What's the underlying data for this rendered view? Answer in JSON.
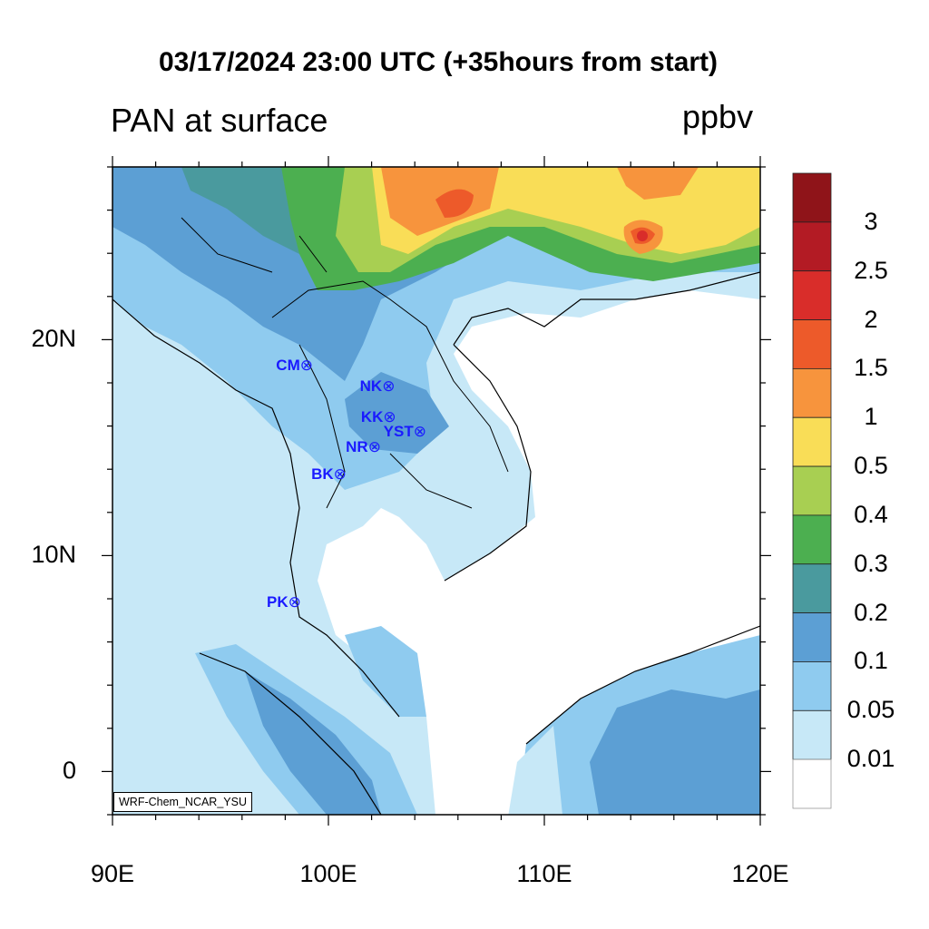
{
  "title": "03/17/2024 23:00 UTC (+35hours from start)",
  "subtitle": "PAN at surface",
  "units": "ppbv",
  "credit": "WRF-Chem_NCAR_YSU",
  "axes": {
    "lon_labels": [
      "90E",
      "100E",
      "110E",
      "120E"
    ],
    "lon_values": [
      90,
      100,
      110,
      120
    ],
    "lat_labels": [
      "20N",
      "10N",
      "0"
    ],
    "lat_values": [
      20,
      10,
      0
    ],
    "lon_range": [
      90,
      120
    ],
    "lat_range": [
      -2,
      28
    ]
  },
  "colorbar": {
    "labels": [
      "3",
      "2.5",
      "2",
      "1.5",
      "1",
      "0.5",
      "0.4",
      "0.3",
      "0.2",
      "0.1",
      "0.05",
      "0.01"
    ],
    "colors": [
      "#8f1419",
      "#b31b24",
      "#d92d2a",
      "#ed5a2a",
      "#f7943d",
      "#f9dd57",
      "#a8cf52",
      "#4caf50",
      "#4a9a9e",
      "#5c9fd4",
      "#8fcbef",
      "#c7e8f7",
      "#ffffff"
    ]
  },
  "stations": [
    {
      "name": "CM",
      "lon": 98.95,
      "lat": 18.8
    },
    {
      "name": "NK",
      "lon": 102.75,
      "lat": 17.85
    },
    {
      "name": "KK",
      "lon": 102.8,
      "lat": 16.4
    },
    {
      "name": "YST",
      "lon": 104.2,
      "lat": 15.75
    },
    {
      "name": "NR",
      "lon": 102.1,
      "lat": 15.0
    },
    {
      "name": "BK",
      "lon": 100.5,
      "lat": 13.75
    },
    {
      "name": "PK",
      "lon": 98.4,
      "lat": 7.85
    }
  ]
}
